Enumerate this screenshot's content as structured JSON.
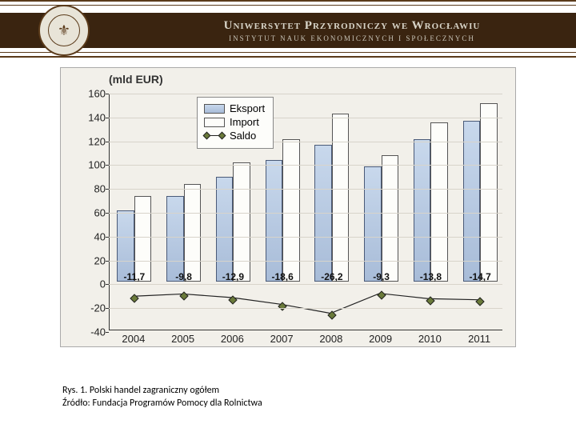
{
  "header": {
    "title": "Uniwersytet Przyrodniczy we Wrocławiu",
    "subtitle": "INSTYTUT NAUK EKONOMICZNYCH I SPOŁECZNYCH",
    "bar_color": "#3a2410",
    "border_color": "#5a3a1a",
    "seal_bg": "#e8e4d8"
  },
  "chart": {
    "type": "bar",
    "ylabel": "(mld EUR)",
    "ylabel_fontsize": 14,
    "background_color": "#f2f0ea",
    "border_color": "#aaaaaa",
    "grid_color": "#d8d4ca",
    "axis_color": "#333333",
    "ylim": [
      -40,
      160
    ],
    "ytick_step": 20,
    "yticks": [
      -40,
      -20,
      0,
      20,
      40,
      60,
      80,
      100,
      120,
      140,
      160
    ],
    "categories": [
      "2004",
      "2005",
      "2006",
      "2007",
      "2008",
      "2009",
      "2010",
      "2011"
    ],
    "series": {
      "eksport": {
        "label": "Eksport",
        "color_top": "#c8d8ec",
        "color_bottom": "#a8bcd8",
        "border": "#4a5a78",
        "values": [
          60,
          72,
          88,
          102,
          115,
          97,
          120,
          135
        ]
      },
      "import": {
        "label": "Import",
        "color": "#fdfdfa",
        "border": "#555555",
        "values": [
          72,
          82,
          100,
          120,
          141,
          106,
          134,
          150
        ]
      },
      "saldo": {
        "label": "Saldo",
        "marker_color": "#6a7a3a",
        "line_color": "#222222",
        "values": [
          -11.7,
          -9.8,
          -12.9,
          -18.6,
          -26.2,
          -9.3,
          -13.8,
          -14.7
        ],
        "value_labels": [
          "-11,7",
          "-9,8",
          "-12,9",
          "-18,6",
          "-26,2",
          "-9,3",
          "-13,8",
          "-14,7"
        ]
      }
    },
    "bar_width_ratio": 0.35,
    "label_fontsize": 12,
    "tick_fontsize": 13
  },
  "caption": {
    "line1": "Rys. 1. Polski handel zagraniczny ogółem",
    "line2": "Źródło: Fundacja Programów Pomocy dla Rolnictwa"
  }
}
